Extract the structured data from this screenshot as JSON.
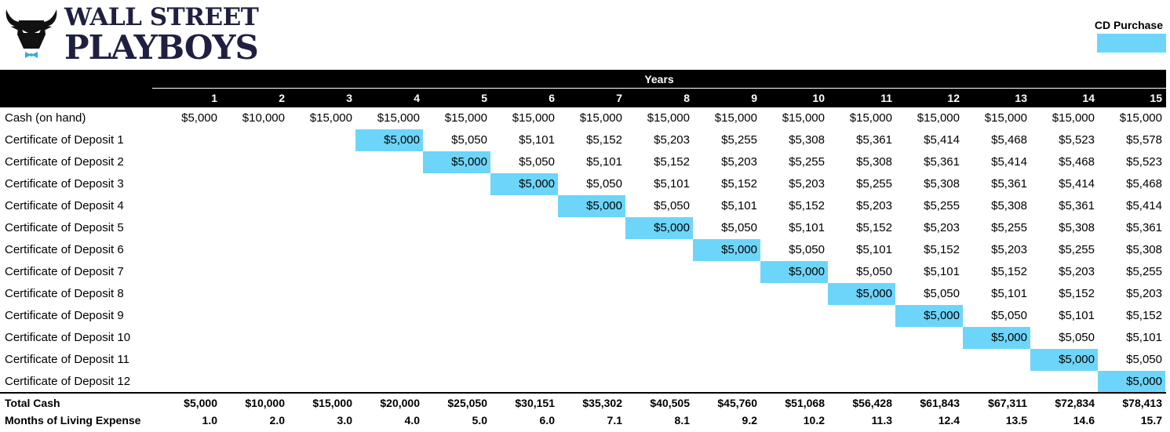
{
  "brand": {
    "line1": "WALL STREET",
    "line2": "PLAYBOYS",
    "logo_icon": "bull-head-icon"
  },
  "legend": {
    "label": "CD Purchase",
    "color": "#6dd5fa"
  },
  "table": {
    "group_header": "Years",
    "years": [
      "1",
      "2",
      "3",
      "4",
      "5",
      "6",
      "7",
      "8",
      "9",
      "10",
      "11",
      "12",
      "13",
      "14",
      "15"
    ],
    "rows": [
      {
        "label": "Cash (on hand)",
        "values": [
          "$5,000",
          "$10,000",
          "$15,000",
          "$15,000",
          "$15,000",
          "$15,000",
          "$15,000",
          "$15,000",
          "$15,000",
          "$15,000",
          "$15,000",
          "$15,000",
          "$15,000",
          "$15,000",
          "$15,000"
        ],
        "purchase_year": null
      },
      {
        "label": "Certificate of Deposit 1",
        "values": [
          "",
          "",
          "",
          "$5,000",
          "$5,050",
          "$5,101",
          "$5,152",
          "$5,203",
          "$5,255",
          "$5,308",
          "$5,361",
          "$5,414",
          "$5,468",
          "$5,523",
          "$5,578"
        ],
        "purchase_year": 4
      },
      {
        "label": "Certificate of Deposit 2",
        "values": [
          "",
          "",
          "",
          "",
          "$5,000",
          "$5,050",
          "$5,101",
          "$5,152",
          "$5,203",
          "$5,255",
          "$5,308",
          "$5,361",
          "$5,414",
          "$5,468",
          "$5,523"
        ],
        "purchase_year": 5
      },
      {
        "label": "Certificate of Deposit 3",
        "values": [
          "",
          "",
          "",
          "",
          "",
          "$5,000",
          "$5,050",
          "$5,101",
          "$5,152",
          "$5,203",
          "$5,255",
          "$5,308",
          "$5,361",
          "$5,414",
          "$5,468"
        ],
        "purchase_year": 6
      },
      {
        "label": "Certificate of Deposit 4",
        "values": [
          "",
          "",
          "",
          "",
          "",
          "",
          "$5,000",
          "$5,050",
          "$5,101",
          "$5,152",
          "$5,203",
          "$5,255",
          "$5,308",
          "$5,361",
          "$5,414"
        ],
        "purchase_year": 7
      },
      {
        "label": "Certificate of Deposit 5",
        "values": [
          "",
          "",
          "",
          "",
          "",
          "",
          "",
          "$5,000",
          "$5,050",
          "$5,101",
          "$5,152",
          "$5,203",
          "$5,255",
          "$5,308",
          "$5,361"
        ],
        "purchase_year": 8
      },
      {
        "label": "Certificate of Deposit 6",
        "values": [
          "",
          "",
          "",
          "",
          "",
          "",
          "",
          "",
          "$5,000",
          "$5,050",
          "$5,101",
          "$5,152",
          "$5,203",
          "$5,255",
          "$5,308"
        ],
        "purchase_year": 9
      },
      {
        "label": "Certificate of Deposit 7",
        "values": [
          "",
          "",
          "",
          "",
          "",
          "",
          "",
          "",
          "",
          "$5,000",
          "$5,050",
          "$5,101",
          "$5,152",
          "$5,203",
          "$5,255"
        ],
        "purchase_year": 10
      },
      {
        "label": "Certificate of Deposit 8",
        "values": [
          "",
          "",
          "",
          "",
          "",
          "",
          "",
          "",
          "",
          "",
          "$5,000",
          "$5,050",
          "$5,101",
          "$5,152",
          "$5,203"
        ],
        "purchase_year": 11
      },
      {
        "label": "Certificate of Deposit 9",
        "values": [
          "",
          "",
          "",
          "",
          "",
          "",
          "",
          "",
          "",
          "",
          "",
          "$5,000",
          "$5,050",
          "$5,101",
          "$5,152"
        ],
        "purchase_year": 12
      },
      {
        "label": "Certificate of Deposit 10",
        "values": [
          "",
          "",
          "",
          "",
          "",
          "",
          "",
          "",
          "",
          "",
          "",
          "",
          "$5,000",
          "$5,050",
          "$5,101"
        ],
        "purchase_year": 13
      },
      {
        "label": "Certificate of Deposit 11",
        "values": [
          "",
          "",
          "",
          "",
          "",
          "",
          "",
          "",
          "",
          "",
          "",
          "",
          "",
          "$5,000",
          "$5,050"
        ],
        "purchase_year": 14
      },
      {
        "label": "Certificate of Deposit 12",
        "values": [
          "",
          "",
          "",
          "",
          "",
          "",
          "",
          "",
          "",
          "",
          "",
          "",
          "",
          "",
          "$5,000"
        ],
        "purchase_year": 15
      }
    ],
    "totals": [
      {
        "label": "Total Cash",
        "values": [
          "$5,000",
          "$10,000",
          "$15,000",
          "$20,000",
          "$25,050",
          "$30,151",
          "$35,302",
          "$40,505",
          "$45,760",
          "$51,068",
          "$56,428",
          "$61,843",
          "$67,311",
          "$72,834",
          "$78,413"
        ]
      },
      {
        "label": "Months of Living Expense",
        "values": [
          "1.0",
          "2.0",
          "3.0",
          "4.0",
          "5.0",
          "6.0",
          "7.1",
          "8.1",
          "9.2",
          "10.2",
          "11.3",
          "12.4",
          "13.5",
          "14.6",
          "15.7"
        ]
      }
    ]
  }
}
